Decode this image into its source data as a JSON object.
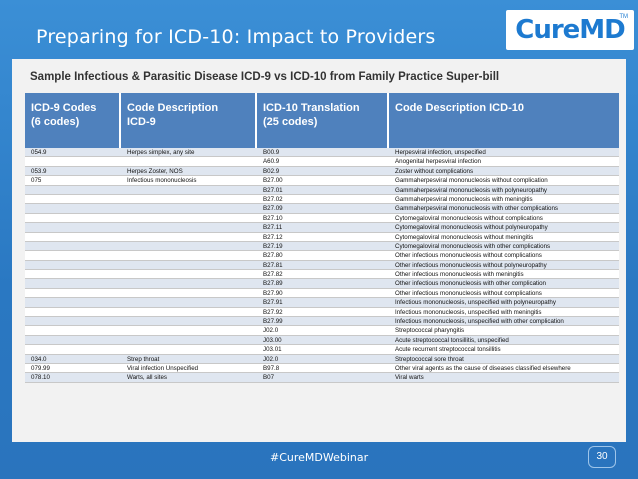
{
  "header": {
    "title": "Preparing for ICD-10: Impact to Providers",
    "logo_text": "CureMD",
    "logo_tm": "TM"
  },
  "slide": {
    "heading": "Sample Infectious & Parasitic Disease ICD-9 vs ICD-10 from Family Practice Super-bill",
    "columns": [
      {
        "line1": "ICD-9 Codes",
        "line2": "(6 codes)"
      },
      {
        "line1": "Code Description",
        "line2": "ICD-9"
      },
      {
        "line1": "ICD-10 Translation",
        "line2": "(25 codes)"
      },
      {
        "line1": "Code Description ICD-10",
        "line2": ""
      }
    ],
    "rows": [
      [
        "054.9",
        "Herpes simplex, any site",
        "B00.9",
        "Herpesviral infection, unspecified"
      ],
      [
        "",
        "",
        "A60.9",
        "Anogenital herpesviral infection"
      ],
      [
        "053.9",
        "Herpes Zoster, NOS",
        "B02.9",
        "Zoster without complications"
      ],
      [
        "075",
        "Infectious mononucleosis",
        "B27.00",
        "Gammaherpesviral mononucleosis without complication"
      ],
      [
        "",
        "",
        "B27.01",
        "Gammaherpesviral mononucleosis with polyneuropathy"
      ],
      [
        "",
        "",
        "B27.02",
        "Gammaherpesviral mononucleosis with meningitis"
      ],
      [
        "",
        "",
        "B27.09",
        "Gammaherpesviral mononucleosis with other complications"
      ],
      [
        "",
        "",
        "B27.10",
        "Cytomegaloviral mononucleosis without complications"
      ],
      [
        "",
        "",
        "B27.11",
        "Cytomegaloviral mononucleosis without polyneuropathy"
      ],
      [
        "",
        "",
        "B27.12",
        "Cytomegaloviral mononucleosis without meningitis"
      ],
      [
        "",
        "",
        "B27.19",
        "Cytomegaloviral mononucleosis with other complications"
      ],
      [
        "",
        "",
        "B27.80",
        "Other infectious mononucleosis without complications"
      ],
      [
        "",
        "",
        "B27.81",
        "Other infectious mononucleosis without polyneuropathy"
      ],
      [
        "",
        "",
        "B27.82",
        "Other infectious mononucleosis with meningitis"
      ],
      [
        "",
        "",
        "B27.89",
        "Other infectious mononucleosis with other complication"
      ],
      [
        "",
        "",
        "B27.90",
        "Other infectious mononucleosis without complications"
      ],
      [
        "",
        "",
        "B27.91",
        "Infectious mononucleosis, unspecified with polyneuropathy"
      ],
      [
        "",
        "",
        "B27.92",
        "Infectious mononucleosis, unspecified with meningitis"
      ],
      [
        "",
        "",
        "B27.99",
        "Infectious mononucleosis, unspecified with other complication"
      ],
      [
        "",
        "",
        "J02.0",
        "Streptococcal pharyngitis"
      ],
      [
        "",
        "",
        "J03.00",
        "Acute streptococcal tonsillitis, unspecified"
      ],
      [
        "",
        "",
        "J03.01",
        "Acute recurrent streptococcal tonsillitis"
      ],
      [
        "034.0",
        "Strep throat",
        "J02.0",
        "Streptococcal sore throat"
      ],
      [
        "079.99",
        "Viral infection Unspecified",
        "B97.8",
        "Other viral agents as the cause of diseases classified elsewhere"
      ],
      [
        "078.10",
        "Warts, all sites",
        "B07",
        "Viral warts"
      ]
    ]
  },
  "footer": {
    "hashtag": "#CureMDWebinar",
    "page_number": "30"
  }
}
